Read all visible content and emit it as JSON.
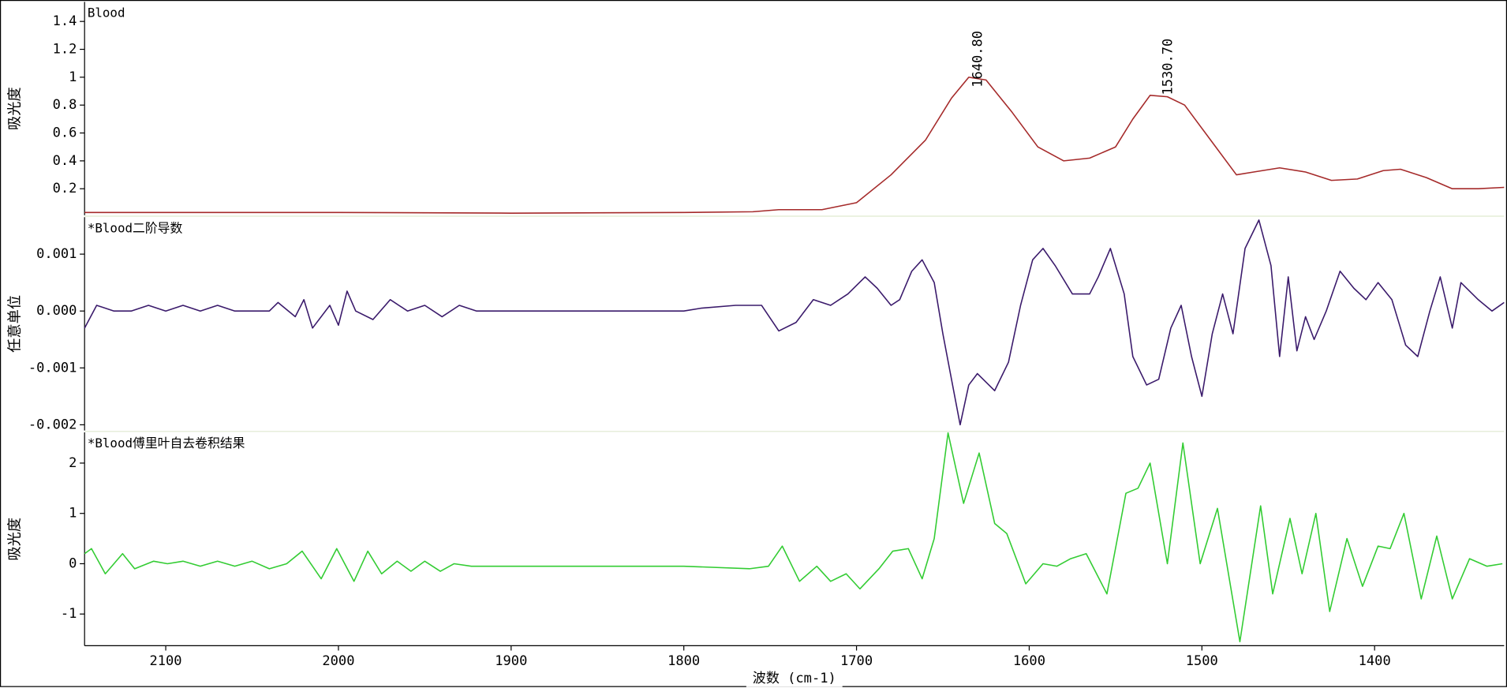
{
  "chart_data": [
    {
      "type": "line",
      "title": "Blood",
      "ylabel": "吸光度",
      "xlim": [
        2147,
        1325
      ],
      "ylim": [
        0.01,
        1.54
      ],
      "yticks": [
        0.2,
        0.4,
        0.6,
        0.8,
        1.0,
        1.2,
        1.4
      ],
      "annotations": [
        {
          "value": 1640.8,
          "label": "1640.80"
        },
        {
          "value": 1530.7,
          "label": "1530.70"
        }
      ],
      "x": [
        2147,
        2100,
        2000,
        1900,
        1800,
        1760,
        1745,
        1720,
        1700,
        1680,
        1660,
        1645,
        1635,
        1625,
        1610,
        1595,
        1580,
        1565,
        1550,
        1540,
        1530,
        1520,
        1510,
        1495,
        1480,
        1470,
        1455,
        1440,
        1425,
        1410,
        1395,
        1385,
        1370,
        1355,
        1340,
        1325
      ],
      "series": [
        {
          "color": "#a52a2a",
          "values": [
            0.03,
            0.03,
            0.03,
            0.025,
            0.03,
            0.035,
            0.05,
            0.05,
            0.1,
            0.3,
            0.55,
            0.85,
            1.0,
            0.98,
            0.75,
            0.5,
            0.4,
            0.42,
            0.5,
            0.7,
            0.87,
            0.86,
            0.8,
            0.55,
            0.3,
            0.32,
            0.35,
            0.32,
            0.26,
            0.27,
            0.33,
            0.34,
            0.28,
            0.2,
            0.2,
            0.21
          ]
        }
      ]
    },
    {
      "type": "line",
      "title": "*Blood二阶导数",
      "ylabel": "任意单位",
      "xlim": [
        2147,
        1325
      ],
      "ylim": [
        -0.0021,
        0.00165
      ],
      "yticks": [
        0.001,
        {
          "value": 0,
          "label": "0.000"
        },
        -0.001,
        -0.002
      ],
      "x": [
        2147,
        2140,
        2130,
        2120,
        2110,
        2100,
        2090,
        2080,
        2070,
        2060,
        2050,
        2040,
        2035,
        2025,
        2020,
        2015,
        2005,
        2000,
        1995,
        1990,
        1980,
        1970,
        1960,
        1950,
        1940,
        1930,
        1920,
        1900,
        1880,
        1860,
        1840,
        1820,
        1800,
        1790,
        1770,
        1755,
        1745,
        1735,
        1725,
        1715,
        1705,
        1695,
        1688,
        1680,
        1675,
        1668,
        1662,
        1655,
        1650,
        1645,
        1640,
        1635,
        1630,
        1620,
        1612,
        1605,
        1598,
        1592,
        1585,
        1575,
        1565,
        1560,
        1553,
        1545,
        1540,
        1532,
        1525,
        1518,
        1512,
        1506,
        1500,
        1494,
        1488,
        1482,
        1475,
        1467,
        1460,
        1455,
        1450,
        1445,
        1440,
        1435,
        1428,
        1420,
        1412,
        1405,
        1398,
        1390,
        1382,
        1375,
        1368,
        1362,
        1355,
        1350,
        1340,
        1332,
        1325
      ],
      "series": [
        {
          "color": "#3a1a6b",
          "values": [
            -0.0003,
            0.0001,
            0.0,
            0.0,
            0.0001,
            0.0,
            0.0001,
            0.0,
            0.0001,
            0.0,
            0.0,
            0.0,
            0.00015,
            -0.0001,
            0.0002,
            -0.0003,
            0.0001,
            -0.00025,
            0.00035,
            0.0,
            -0.00015,
            0.0002,
            0.0,
            0.0001,
            -0.0001,
            0.0001,
            0.0,
            0.0,
            0.0,
            0.0,
            0.0,
            0.0,
            0.0,
            5e-05,
            0.0001,
            0.0001,
            -0.00035,
            -0.0002,
            0.0002,
            0.0001,
            0.0003,
            0.0006,
            0.0004,
            0.0001,
            0.0002,
            0.0007,
            0.0009,
            0.0005,
            -0.0004,
            -0.0012,
            -0.002,
            -0.0013,
            -0.0011,
            -0.0014,
            -0.0009,
            0.0001,
            0.0009,
            0.0011,
            0.0008,
            0.0003,
            0.0003,
            0.0006,
            0.0011,
            0.0003,
            -0.0008,
            -0.0013,
            -0.0012,
            -0.0003,
            0.0001,
            -0.0008,
            -0.0015,
            -0.0004,
            0.0003,
            -0.0004,
            0.0011,
            0.0016,
            0.0008,
            -0.0008,
            0.0006,
            -0.0007,
            -0.0001,
            -0.0005,
            0.0,
            0.0007,
            0.0004,
            0.0002,
            0.0005,
            0.0002,
            -0.0006,
            -0.0008,
            0.0,
            0.0006,
            -0.0003,
            0.0005,
            0.0002,
            0.0,
            0.00015
          ]
        }
      ]
    },
    {
      "type": "line",
      "title": "*Blood傅里叶自去卷积结果",
      "ylabel": "吸光度",
      "xlabel": "波数 (cm-1)",
      "xlim": [
        2147,
        1325
      ],
      "xticks": [
        2100,
        2000,
        1900,
        1800,
        1700,
        1600,
        1500,
        1400
      ],
      "ylim": [
        -1.63,
        2.61
      ],
      "yticks": [
        2,
        1,
        0,
        -1
      ],
      "x": [
        2147,
        2143,
        2135,
        2125,
        2118,
        2107,
        2099,
        2090,
        2080,
        2070,
        2060,
        2050,
        2040,
        2030,
        2021,
        2010,
        2001,
        1991,
        1983,
        1975,
        1966,
        1958,
        1950,
        1941,
        1933,
        1923,
        1900,
        1850,
        1800,
        1762,
        1751,
        1743,
        1733,
        1723,
        1715,
        1706,
        1698,
        1687,
        1679,
        1670,
        1662,
        1655,
        1647,
        1638,
        1629,
        1620,
        1613,
        1602,
        1592,
        1584,
        1576,
        1567,
        1555,
        1544,
        1537,
        1530,
        1520,
        1511,
        1501,
        1491,
        1478,
        1466,
        1459,
        1449,
        1442,
        1434,
        1426,
        1416,
        1407,
        1398,
        1391,
        1383,
        1373,
        1364,
        1355,
        1345,
        1335,
        1326
      ],
      "series": [
        {
          "color": "#33cc33",
          "values": [
            0.2,
            0.3,
            -0.2,
            0.2,
            -0.1,
            0.05,
            0.0,
            0.05,
            -0.05,
            0.05,
            -0.05,
            0.05,
            -0.1,
            0.0,
            0.25,
            -0.3,
            0.3,
            -0.35,
            0.25,
            -0.2,
            0.05,
            -0.15,
            0.05,
            -0.15,
            0.0,
            -0.05,
            -0.05,
            -0.05,
            -0.05,
            -0.1,
            -0.05,
            0.35,
            -0.35,
            -0.05,
            -0.35,
            -0.2,
            -0.5,
            -0.1,
            0.25,
            0.3,
            -0.3,
            0.5,
            2.6,
            1.2,
            2.2,
            0.8,
            0.6,
            -0.4,
            0.0,
            -0.05,
            0.1,
            0.2,
            -0.6,
            1.4,
            1.5,
            2.0,
            0.0,
            2.4,
            0.0,
            1.1,
            -1.55,
            1.15,
            -0.6,
            0.9,
            -0.2,
            1.0,
            -0.95,
            0.5,
            -0.45,
            0.35,
            0.3,
            1.0,
            -0.7,
            0.55,
            -0.7,
            0.1,
            -0.05,
            0.0
          ]
        }
      ]
    }
  ]
}
